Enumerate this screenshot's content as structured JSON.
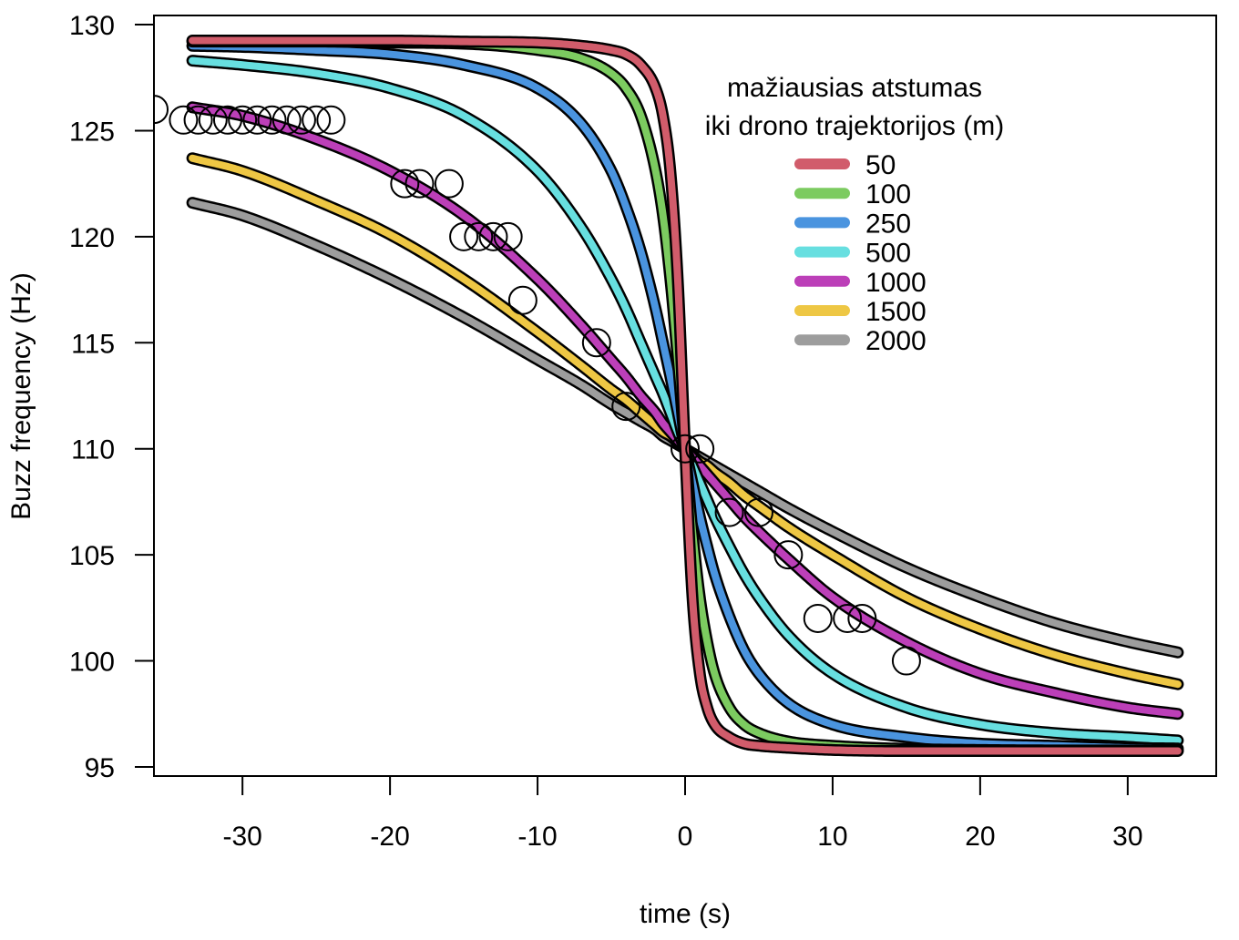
{
  "chart_data": {
    "type": "line",
    "title": "",
    "xlabel": "time (s)",
    "ylabel": "Buzz frequency (Hz)",
    "xlim": [
      -36,
      36
    ],
    "ylim": [
      94.57,
      130.43
    ],
    "xticks": [
      -30,
      -20,
      -10,
      0,
      10,
      20,
      30
    ],
    "yticks": [
      95,
      100,
      105,
      110,
      115,
      120,
      125,
      130
    ],
    "grid": false,
    "legend": {
      "title_lines": [
        "mažiausias atstumas",
        "iki drono trajektorijos (m)"
      ],
      "placement": "top-right"
    },
    "x": [
      -33.4,
      -30,
      -25,
      -20,
      -15,
      -10,
      -7,
      -5,
      -4,
      -3,
      -2,
      -1.5,
      -1,
      -0.5,
      0,
      0.5,
      1,
      1.5,
      2,
      3,
      4,
      5,
      7,
      10,
      15,
      20,
      25,
      30,
      33.4
    ],
    "series": [
      {
        "name": "50",
        "color": "#D15C6B",
        "values": [
          129.25,
          129.25,
          129.25,
          129.25,
          129.2,
          129.15,
          129.0,
          128.8,
          128.6,
          128.1,
          127.0,
          125.7,
          123.1,
          118.0,
          110,
          103.0,
          99.4,
          97.8,
          97.0,
          96.4,
          96.1,
          96.0,
          95.9,
          95.8,
          95.75,
          95.75,
          95.75,
          95.75,
          95.75
        ]
      },
      {
        "name": "100",
        "color": "#7CCB60",
        "values": [
          129.2,
          129.2,
          129.2,
          129.15,
          129.1,
          128.8,
          128.4,
          127.7,
          127.0,
          125.7,
          123.1,
          121.0,
          118.0,
          114.2,
          110,
          106.1,
          103.0,
          100.9,
          99.4,
          97.8,
          97.0,
          96.6,
          96.2,
          96.0,
          95.85,
          95.8,
          95.78,
          95.78,
          95.78
        ]
      },
      {
        "name": "250",
        "color": "#4A94DF",
        "values": [
          129.0,
          128.95,
          128.8,
          128.6,
          128.1,
          127.0,
          125.3,
          123.1,
          121.4,
          119.3,
          116.6,
          115.0,
          113.4,
          111.7,
          110,
          108.4,
          106.8,
          105.4,
          104.1,
          102.1,
          100.5,
          99.4,
          98.0,
          97.0,
          96.4,
          96.1,
          96.0,
          95.9,
          95.87
        ]
      },
      {
        "name": "500",
        "color": "#67DFE0",
        "values": [
          128.3,
          128.1,
          127.7,
          127.0,
          125.7,
          123.1,
          120.4,
          118.0,
          116.6,
          115.0,
          113.4,
          112.6,
          111.7,
          110.8,
          110,
          109.2,
          108.4,
          107.6,
          106.8,
          105.4,
          104.1,
          103.0,
          101.2,
          99.4,
          97.8,
          97.0,
          96.6,
          96.4,
          96.25
        ]
      },
      {
        "name": "1000",
        "color": "#BC3FB8",
        "values": [
          126.1,
          125.7,
          124.6,
          123.1,
          121.0,
          118.0,
          115.8,
          114.2,
          113.4,
          112.5,
          111.7,
          111.2,
          110.8,
          110.4,
          110,
          109.6,
          109.2,
          108.8,
          108.4,
          107.6,
          106.8,
          106.1,
          104.8,
          103.0,
          100.9,
          99.4,
          98.5,
          97.8,
          97.5
        ]
      },
      {
        "name": "1500",
        "color": "#EEC744",
        "values": [
          123.7,
          123.1,
          121.7,
          120.1,
          118.0,
          115.5,
          113.9,
          112.8,
          112.3,
          111.7,
          111.1,
          110.8,
          110.6,
          110.3,
          110,
          109.7,
          109.4,
          109.2,
          108.9,
          108.4,
          107.8,
          107.3,
          106.3,
          105.0,
          103.0,
          101.5,
          100.3,
          99.4,
          98.9
        ]
      },
      {
        "name": "2000",
        "color": "#9D9D9D",
        "values": [
          121.6,
          121.0,
          119.6,
          118.0,
          116.2,
          114.2,
          113.0,
          112.1,
          111.7,
          111.3,
          110.9,
          110.6,
          110.4,
          110.2,
          110,
          109.8,
          109.6,
          109.4,
          109.2,
          108.8,
          108.4,
          108.0,
          107.2,
          106.1,
          104.4,
          103.0,
          101.8,
          100.9,
          100.4
        ]
      }
    ],
    "observed_points": [
      {
        "t": -36,
        "hz": 126
      },
      {
        "t": -34,
        "hz": 125.5
      },
      {
        "t": -33,
        "hz": 125.5
      },
      {
        "t": -32,
        "hz": 125.5
      },
      {
        "t": -31,
        "hz": 125.5
      },
      {
        "t": -30,
        "hz": 125.5
      },
      {
        "t": -29,
        "hz": 125.5
      },
      {
        "t": -28,
        "hz": 125.5
      },
      {
        "t": -27,
        "hz": 125.5
      },
      {
        "t": -26,
        "hz": 125.5
      },
      {
        "t": -25,
        "hz": 125.5
      },
      {
        "t": -24,
        "hz": 125.5
      },
      {
        "t": -19,
        "hz": 122.5
      },
      {
        "t": -18,
        "hz": 122.5
      },
      {
        "t": -16,
        "hz": 122.5
      },
      {
        "t": -15,
        "hz": 120
      },
      {
        "t": -14,
        "hz": 120
      },
      {
        "t": -13,
        "hz": 120
      },
      {
        "t": -12,
        "hz": 120
      },
      {
        "t": -11,
        "hz": 117
      },
      {
        "t": -6,
        "hz": 115
      },
      {
        "t": -4,
        "hz": 112
      },
      {
        "t": 0,
        "hz": 110
      },
      {
        "t": 1,
        "hz": 110
      },
      {
        "t": 3,
        "hz": 107
      },
      {
        "t": 5,
        "hz": 107
      },
      {
        "t": 7,
        "hz": 105
      },
      {
        "t": 9,
        "hz": 102
      },
      {
        "t": 11,
        "hz": 102
      },
      {
        "t": 12,
        "hz": 102
      },
      {
        "t": 15,
        "hz": 100
      }
    ]
  }
}
